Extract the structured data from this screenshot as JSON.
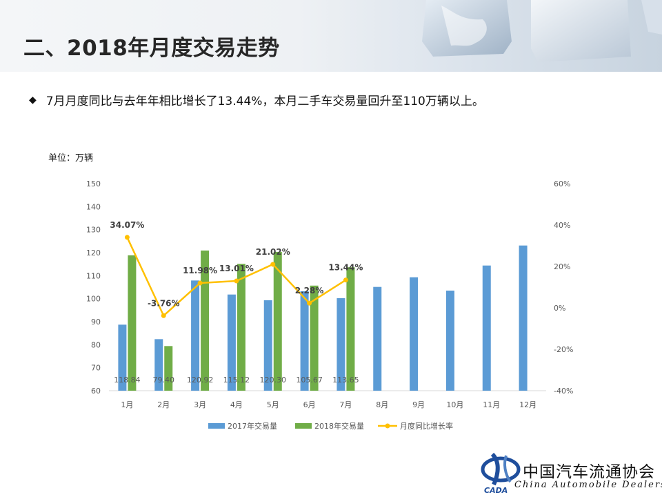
{
  "header": {
    "title": "二、2018年月度交易走势"
  },
  "bullet": {
    "mark": "◆",
    "text": "7月月度同比与去年年相比增长了13.44%，本月二手车交易量回升至110万辆以上。"
  },
  "unit_label": "单位：万辆",
  "footer": {
    "org_name_cn": "中国汽车流通协会",
    "org_name_en": "China Automobile Dealers",
    "logo_text": "CADA"
  },
  "colors": {
    "series_2017": "#5b9bd5",
    "series_2018": "#70ad47",
    "growth_line": "#ffc000",
    "axis_text": "#595959",
    "axis_line": "#d9d9d9"
  },
  "chart_data": {
    "type": "bar",
    "categories": [
      "1月",
      "2月",
      "3月",
      "4月",
      "5月",
      "6月",
      "7月",
      "8月",
      "9月",
      "10月",
      "11月",
      "12月"
    ],
    "series": [
      {
        "name": "2017年交易量",
        "type": "bar",
        "axis": "left",
        "values": [
          88.7,
          82.4,
          107.9,
          101.8,
          99.3,
          103.2,
          100.2,
          105.1,
          109.3,
          103.5,
          114.4,
          123.1
        ]
      },
      {
        "name": "2018年交易量",
        "type": "bar",
        "axis": "left",
        "values": [
          118.84,
          79.4,
          120.92,
          115.12,
          120.3,
          105.67,
          113.65,
          null,
          null,
          null,
          null,
          null
        ],
        "data_labels": [
          "118.84",
          "79.40",
          "120.92",
          "115.12",
          "120.30",
          "105.67",
          "113.65"
        ]
      },
      {
        "name": "月度同比增长率",
        "type": "line",
        "axis": "right",
        "values": [
          34.07,
          -3.76,
          11.98,
          13.01,
          21.02,
          2.28,
          13.44,
          null,
          null,
          null,
          null,
          null
        ],
        "data_labels": [
          "34.07%",
          "-3.76%",
          "11.98%",
          "13.01%",
          "21.02%",
          "2.28%",
          "13.44%"
        ]
      }
    ],
    "ylim": [
      60,
      150
    ],
    "yticks": [
      "150",
      "140",
      "130",
      "120",
      "110",
      "100",
      "90",
      "80",
      "70",
      "60"
    ],
    "y2lim": [
      -40,
      60
    ],
    "y2ticks": [
      "60%",
      "40%",
      "20%",
      "0%",
      "-20%",
      "-40%"
    ],
    "grid": false,
    "legend_position": "bottom"
  }
}
